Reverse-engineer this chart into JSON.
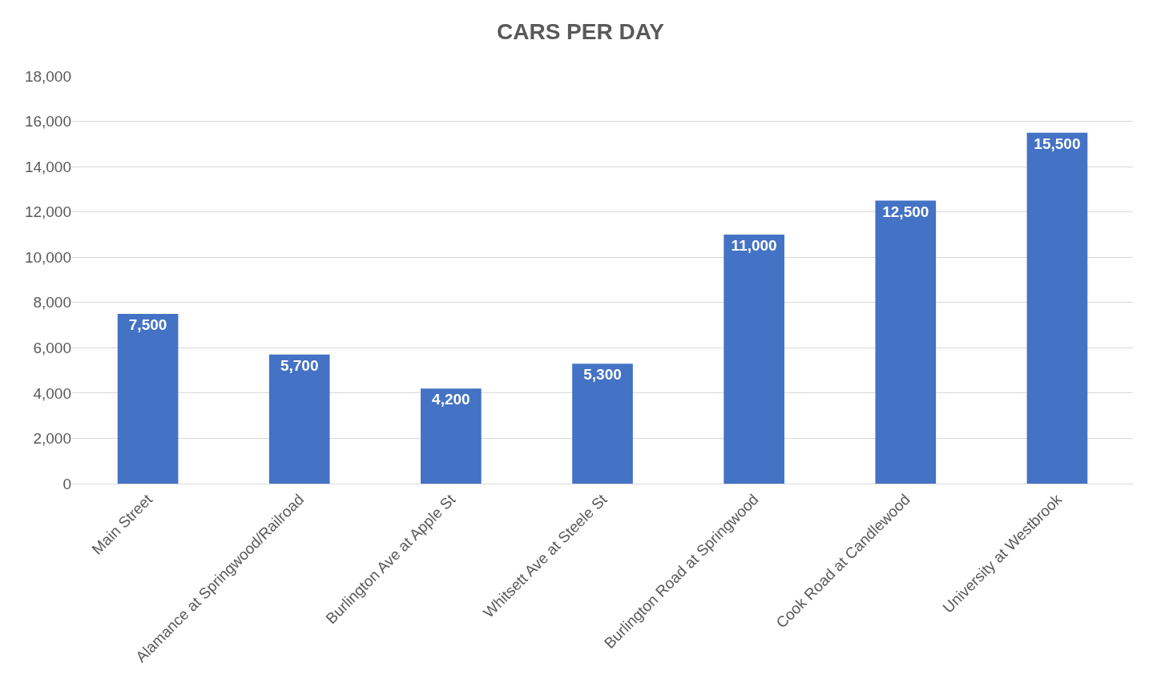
{
  "chart_data": {
    "type": "bar",
    "title": "CARS PER DAY",
    "categories": [
      "Main Street",
      "Alamance at Springwood/Railroad",
      "Burlington Ave at Apple St",
      "Whitsett Ave at Steele St",
      "Burlington Road at Springwood",
      "Cook Road at Candlewood",
      "University at Westbrook"
    ],
    "values": [
      7500,
      5700,
      4200,
      5300,
      11000,
      12500,
      15500
    ],
    "color": "#4472c4",
    "ylim": [
      0,
      18000
    ],
    "yticks": [
      {
        "value": 0,
        "label": "0"
      },
      {
        "value": 2000,
        "label": "2,000"
      },
      {
        "value": 4000,
        "label": "4,000"
      },
      {
        "value": 6000,
        "label": "6,000"
      },
      {
        "value": 8000,
        "label": "8,000"
      },
      {
        "value": 10000,
        "label": "10,000"
      },
      {
        "value": 12000,
        "label": "12,000"
      },
      {
        "value": 14000,
        "label": "14,000"
      },
      {
        "value": 16000,
        "label": "16,000"
      },
      {
        "value": 18000,
        "label": "18,000"
      }
    ],
    "value_labels": [
      "7,500",
      "5,700",
      "4,200",
      "5,300",
      "11,000",
      "12,500",
      "15,500"
    ],
    "grid": "y"
  }
}
